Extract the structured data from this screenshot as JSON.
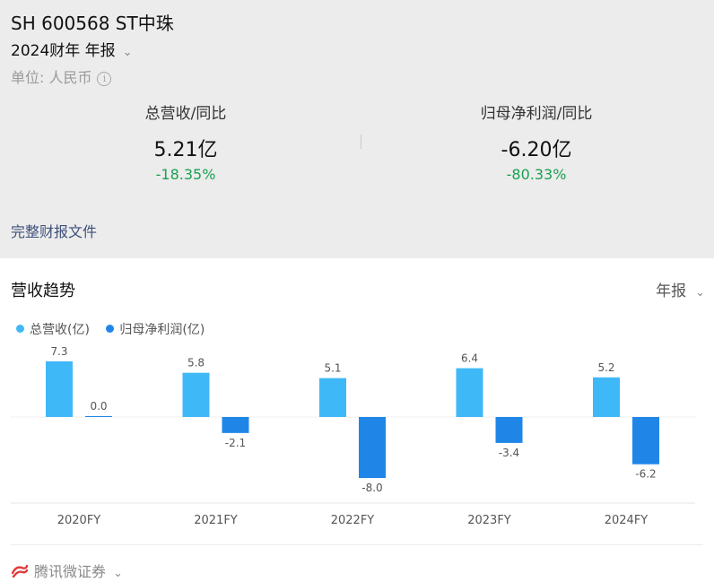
{
  "header": {
    "stock_title": "SH 600568 ST中珠",
    "period_label": "2024财年 年报",
    "unit_label": "单位: 人民币",
    "metrics": [
      {
        "label": "总营收/同比",
        "value": "5.21亿",
        "change": "-18.35%"
      },
      {
        "label": "归母净利润/同比",
        "value": "-6.20亿",
        "change": "-80.33%"
      }
    ],
    "report_link": "完整财报文件"
  },
  "trend": {
    "title": "营收趋势",
    "period_selector": "年报"
  },
  "footer": {
    "brand": "腾讯微证券"
  },
  "colors": {
    "revenue": "#3fb8f8",
    "profit": "#1f86e8",
    "positive_change": "#1aa050"
  },
  "chart_data": {
    "type": "bar",
    "categories": [
      "2020FY",
      "2021FY",
      "2022FY",
      "2023FY",
      "2024FY"
    ],
    "series": [
      {
        "name": "总营收(亿)",
        "values": [
          7.3,
          5.8,
          5.1,
          6.4,
          5.2
        ],
        "labels": [
          "7.3",
          "5.8",
          "5.1",
          "6.4",
          "5.2"
        ]
      },
      {
        "name": "归母净利润(亿)",
        "values": [
          0.0,
          -2.1,
          -8.0,
          -3.4,
          -6.2
        ],
        "labels": [
          "0.0",
          "-2.1",
          "-8.0",
          "-3.4",
          "-6.2"
        ]
      }
    ],
    "grid": false,
    "legend_position": "top-left"
  }
}
